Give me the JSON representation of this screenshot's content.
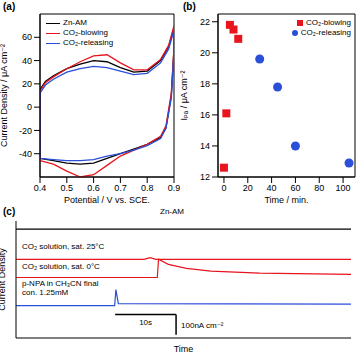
{
  "chart_data": [
    {
      "type": "line",
      "title": "(a)",
      "x_label": "Potential / V vs. SCE.",
      "y_label": "Current Density / μA cm⁻²",
      "xlim": [
        0.4,
        0.9
      ],
      "xticks": [
        0.4,
        0.5,
        0.6,
        0.7,
        0.8,
        0.9
      ],
      "ylim": [
        -60,
        80
      ],
      "yticks": [
        -40,
        -20,
        0,
        20,
        40,
        60
      ],
      "legend": "upper left",
      "series": [
        {
          "name": "Zn-AM",
          "color": "#000000",
          "x": [
            0.4,
            0.4,
            0.42,
            0.45,
            0.5,
            0.55,
            0.6,
            0.65,
            0.7,
            0.75,
            0.8,
            0.85,
            0.88,
            0.9,
            0.9,
            0.89,
            0.87,
            0.85,
            0.8,
            0.75,
            0.7,
            0.65,
            0.6,
            0.55,
            0.5,
            0.45,
            0.4
          ],
          "values": [
            -44,
            15,
            22,
            27,
            33,
            37,
            40,
            39,
            34,
            30,
            31,
            40,
            52,
            68,
            50,
            10,
            -18,
            -26,
            -32,
            -36,
            -40,
            -44,
            -48,
            -49,
            -48,
            -46,
            -44
          ]
        },
        {
          "name": "CO₂-blowing",
          "color": "#e8141e",
          "x": [
            0.4,
            0.4,
            0.42,
            0.45,
            0.5,
            0.55,
            0.6,
            0.65,
            0.7,
            0.75,
            0.8,
            0.85,
            0.88,
            0.9,
            0.9,
            0.89,
            0.87,
            0.85,
            0.8,
            0.75,
            0.7,
            0.65,
            0.6,
            0.55,
            0.5,
            0.45,
            0.4
          ],
          "values": [
            -46,
            14,
            21,
            26,
            33,
            39,
            44,
            45,
            38,
            32,
            32,
            41,
            53,
            70,
            52,
            12,
            -16,
            -25,
            -32,
            -37,
            -42,
            -50,
            -58,
            -60,
            -55,
            -49,
            -46
          ]
        },
        {
          "name": "CO₂-releasing",
          "color": "#2a4fd8",
          "x": [
            0.4,
            0.4,
            0.42,
            0.45,
            0.5,
            0.55,
            0.6,
            0.65,
            0.7,
            0.75,
            0.8,
            0.85,
            0.88,
            0.9,
            0.9,
            0.89,
            0.87,
            0.85,
            0.8,
            0.75,
            0.7,
            0.65,
            0.6,
            0.55,
            0.5,
            0.45,
            0.4
          ],
          "values": [
            -44,
            12,
            19,
            24,
            30,
            33,
            35,
            34,
            31,
            28,
            29,
            38,
            50,
            66,
            48,
            8,
            -18,
            -27,
            -33,
            -37,
            -40,
            -42,
            -45,
            -46,
            -46,
            -45,
            -44
          ]
        }
      ]
    },
    {
      "type": "scatter",
      "title": "(b)",
      "x_label": "Time / min.",
      "y_label": "Iₚₐ / μA cm⁻²",
      "xlim": [
        -5,
        110
      ],
      "xticks": [
        0,
        20,
        40,
        60,
        80,
        100
      ],
      "ylim": [
        12,
        22.5
      ],
      "yticks": [
        12,
        14,
        16,
        18,
        20,
        22
      ],
      "legend": "upper right",
      "series": [
        {
          "name": "CO₂-blowing",
          "color": "#e8141e",
          "marker": "square",
          "x": [
            0,
            2,
            5,
            8,
            12
          ],
          "values": [
            12.6,
            16.1,
            21.8,
            21.5,
            20.9
          ]
        },
        {
          "name": "CO₂-releasing",
          "color": "#2a4fd8",
          "marker": "circle",
          "x": [
            30,
            45,
            60,
            105
          ],
          "values": [
            19.6,
            17.8,
            14.0,
            12.9
          ]
        }
      ]
    },
    {
      "type": "line",
      "title": "(c)",
      "x_label": "Time",
      "y_label": "Current Density",
      "tick_labels": false,
      "xlim": [
        0,
        55
      ],
      "ylim": [
        -60,
        520
      ],
      "scale_bars": {
        "x": 10,
        "x_label": "10s",
        "y": 100,
        "y_label": "100nA cm⁻²"
      },
      "series": [
        {
          "name": "Zn-AM",
          "color": "#000000",
          "x": [
            0,
            55
          ],
          "values": [
            480,
            480
          ]
        },
        {
          "name": "CO₂ solution, sat. 25°C",
          "color": "#e8141e",
          "x": [
            0,
            21,
            22,
            23,
            55
          ],
          "values": [
            330,
            330,
            338,
            330,
            330
          ]
        },
        {
          "name": "CO₂ solution, sat. 0°C",
          "color": "#e8141e",
          "x": [
            0,
            23.2,
            23.4,
            25,
            28,
            32,
            40,
            55
          ],
          "values": [
            240,
            240,
            330,
            305,
            285,
            272,
            262,
            255
          ]
        },
        {
          "name": "p-NPA in CH₃CN final con. 1.25mM",
          "color": "#2a4fd8",
          "x": [
            0,
            16.2,
            16.4,
            16.8,
            55
          ],
          "values": [
            100,
            100,
            180,
            110,
            108
          ]
        }
      ]
    }
  ]
}
